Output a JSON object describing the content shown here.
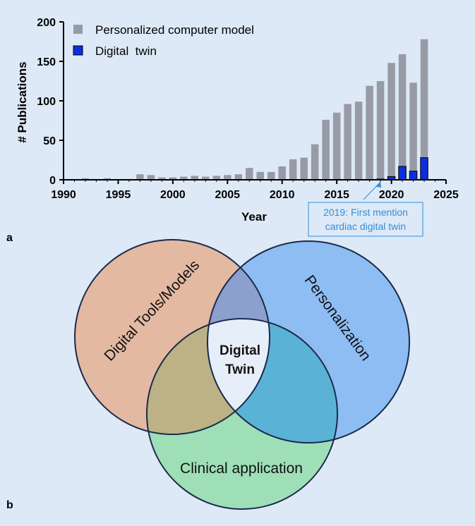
{
  "panel_a_label": "a",
  "panel_b_label": "b",
  "colors": {
    "background": "#dde9f6",
    "computer_model": "#979ba5",
    "digital_twin": "#0d2ee0",
    "annotation": "#2f8fdd",
    "venn_tools": "#e3b9a2",
    "venn_personalization": "#8dbdf2",
    "venn_clinical": "#9fdfb8",
    "venn_outline": "#1b2a4a"
  },
  "chart_data": {
    "type": "bar",
    "stacked": true,
    "xlabel": "Year",
    "ylabel": "# Publications",
    "xlim": [
      1990,
      2025
    ],
    "ylim": [
      0,
      200
    ],
    "xticks": [
      1990,
      1995,
      2000,
      2005,
      2010,
      2015,
      2020,
      2025
    ],
    "yticks": [
      0,
      50,
      100,
      150,
      200
    ],
    "grid": false,
    "legend_position": "top-left",
    "x": [
      1991,
      1992,
      1993,
      1994,
      1995,
      1996,
      1997,
      1998,
      1999,
      2000,
      2001,
      2002,
      2003,
      2004,
      2005,
      2006,
      2007,
      2008,
      2009,
      2010,
      2011,
      2012,
      2013,
      2014,
      2015,
      2016,
      2017,
      2018,
      2019,
      2020,
      2021,
      2022,
      2023
    ],
    "series": [
      {
        "name": "Personalized computer model",
        "values": [
          1,
          2,
          1,
          2,
          1,
          1,
          7,
          6,
          3,
          3,
          4,
          5,
          4,
          5,
          6,
          7,
          15,
          10,
          10,
          17,
          26,
          28,
          45,
          76,
          85,
          96,
          99,
          119,
          125,
          148,
          159,
          123,
          178
        ]
      },
      {
        "name": "Digital  twin",
        "values": [
          0,
          0,
          0,
          0,
          0,
          0,
          0,
          0,
          0,
          0,
          0,
          0,
          0,
          0,
          0,
          0,
          0,
          0,
          0,
          0,
          0,
          0,
          0,
          0,
          0,
          0,
          0,
          0,
          1,
          4,
          17,
          11,
          28
        ]
      }
    ],
    "annotation": {
      "line1": "2019: First mention",
      "line2": "cardiac digital twin",
      "points_to_year": 2019
    }
  },
  "venn": {
    "set_left": "Digital Tools/Models",
    "set_right": "Personalization",
    "set_bottom": "Clinical application",
    "center_line1": "Digital",
    "center_line2": "Twin"
  }
}
